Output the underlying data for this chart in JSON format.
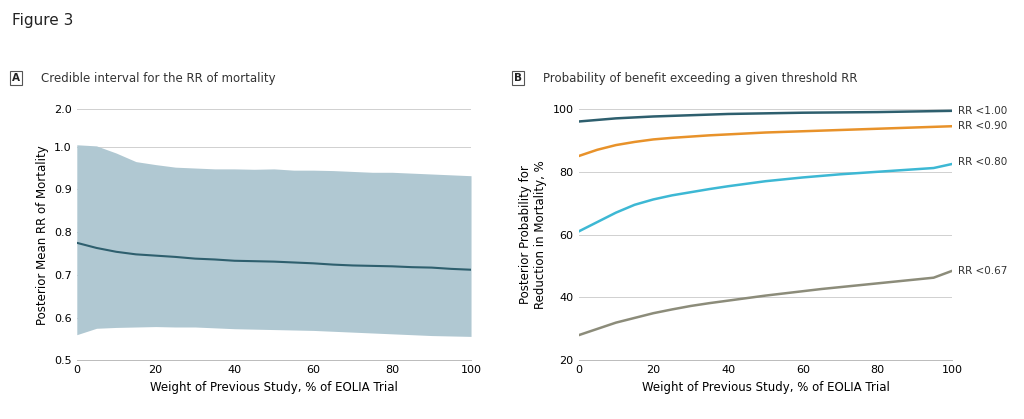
{
  "figure_title": "Figure 3",
  "panel_A_title": "Credible interval for the RR of mortality",
  "panel_B_title": "Probability of benefit exceeding a given threshold RR",
  "xlabel": "Weight of Previous Study, % of EOLIA Trial",
  "panel_A_ylabel": "Posterior Mean RR of Mortality",
  "panel_B_ylabel": "Posterior Probability for\nReduction in Mortality, %",
  "panel_B_ylim": [
    20,
    100
  ],
  "panel_B_yticks": [
    20,
    40,
    60,
    80,
    100
  ],
  "xlim": [
    0,
    100
  ],
  "xticks": [
    0,
    20,
    40,
    60,
    80,
    100
  ],
  "mean_line_color": "#2e5f6e",
  "ci_fill_color": "#b0c8d2",
  "rr100_color": "#2e5f6e",
  "rr090_color": "#e8922a",
  "rr080_color": "#3db8d4",
  "rr067_color": "#8c8c7a",
  "background_color": "#ffffff",
  "grid_color": "#d0d0d0",
  "panel_A_mean_x": [
    0,
    5,
    10,
    15,
    20,
    25,
    30,
    35,
    40,
    45,
    50,
    55,
    60,
    65,
    70,
    75,
    80,
    85,
    90,
    95,
    100
  ],
  "panel_A_mean_y": [
    0.775,
    0.763,
    0.754,
    0.748,
    0.745,
    0.742,
    0.738,
    0.736,
    0.733,
    0.732,
    0.731,
    0.729,
    0.727,
    0.724,
    0.722,
    0.721,
    0.72,
    0.718,
    0.717,
    0.714,
    0.712
  ],
  "panel_A_upper_x": [
    0,
    5,
    10,
    15,
    20,
    25,
    30,
    35,
    40,
    45,
    50,
    55,
    60,
    65,
    70,
    75,
    80,
    85,
    90,
    95,
    100
  ],
  "panel_A_upper_y": [
    1.05,
    1.02,
    0.985,
    0.965,
    0.958,
    0.952,
    0.95,
    0.948,
    0.948,
    0.947,
    0.948,
    0.945,
    0.945,
    0.944,
    0.942,
    0.94,
    0.94,
    0.938,
    0.936,
    0.934,
    0.932
  ],
  "panel_A_lower_x": [
    0,
    5,
    10,
    15,
    20,
    25,
    30,
    35,
    40,
    45,
    50,
    55,
    60,
    65,
    70,
    75,
    80,
    85,
    90,
    95,
    100
  ],
  "panel_A_lower_y": [
    0.56,
    0.575,
    0.577,
    0.578,
    0.579,
    0.578,
    0.578,
    0.576,
    0.574,
    0.573,
    0.572,
    0.571,
    0.57,
    0.568,
    0.566,
    0.564,
    0.562,
    0.56,
    0.558,
    0.557,
    0.556
  ],
  "panel_B_x": [
    0,
    5,
    10,
    15,
    20,
    25,
    30,
    35,
    40,
    45,
    50,
    55,
    60,
    65,
    70,
    75,
    80,
    85,
    90,
    95,
    100
  ],
  "rr100_y": [
    96.0,
    96.5,
    97.0,
    97.3,
    97.6,
    97.8,
    98.0,
    98.2,
    98.4,
    98.5,
    98.6,
    98.7,
    98.8,
    98.85,
    98.9,
    98.95,
    99.0,
    99.1,
    99.2,
    99.3,
    99.4
  ],
  "rr090_y": [
    85.0,
    87.0,
    88.5,
    89.5,
    90.3,
    90.8,
    91.2,
    91.6,
    91.9,
    92.2,
    92.5,
    92.7,
    92.9,
    93.1,
    93.3,
    93.5,
    93.7,
    93.9,
    94.1,
    94.3,
    94.5
  ],
  "rr080_y": [
    61.0,
    64.0,
    67.0,
    69.5,
    71.2,
    72.5,
    73.5,
    74.5,
    75.4,
    76.2,
    77.0,
    77.6,
    78.2,
    78.7,
    79.2,
    79.6,
    80.0,
    80.4,
    80.8,
    81.2,
    82.5
  ],
  "rr067_y": [
    28.0,
    30.0,
    32.0,
    33.5,
    35.0,
    36.2,
    37.3,
    38.2,
    39.0,
    39.8,
    40.6,
    41.3,
    42.0,
    42.7,
    43.3,
    43.9,
    44.5,
    45.1,
    45.7,
    46.3,
    48.5
  ],
  "label_rr100": "RR <1.00",
  "label_rr090": "RR <0.90",
  "label_rr080": "RR <0.80",
  "label_rr067": "RR <0.67"
}
